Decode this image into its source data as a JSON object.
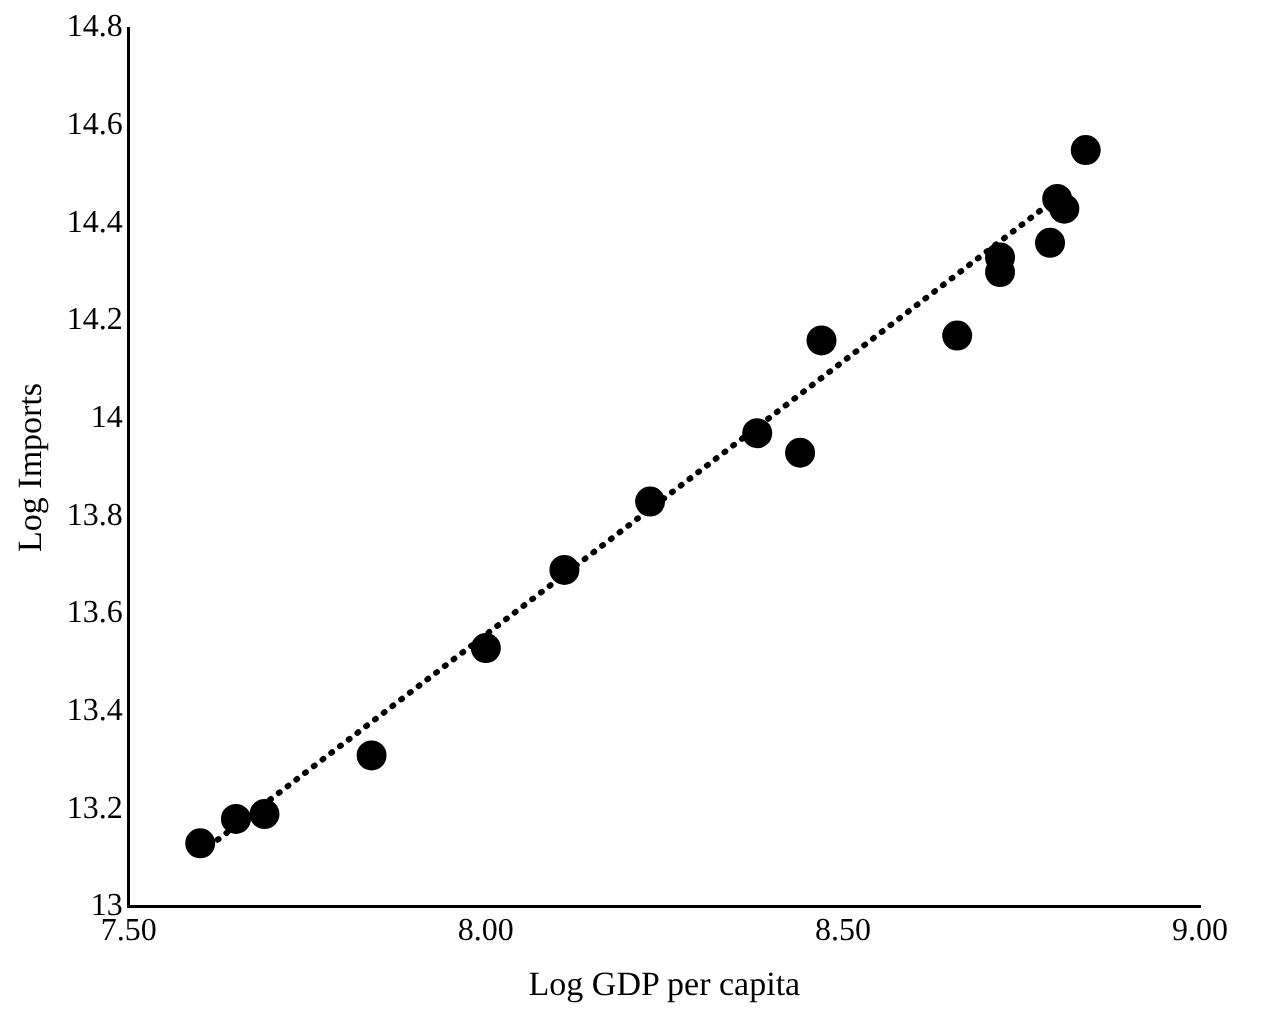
{
  "chart_data": {
    "type": "scatter",
    "xlabel": "Log GDP per capita",
    "ylabel": "Log Imports",
    "xlim": [
      7.5,
      9.0
    ],
    "xticks": [
      {
        "value": 7.5,
        "label": "7.50"
      },
      {
        "value": 8.0,
        "label": "8.00"
      },
      {
        "value": 8.5,
        "label": "8.50"
      },
      {
        "value": 9.0,
        "label": "9.00"
      }
    ],
    "ylim": [
      13,
      14.8
    ],
    "yticks": [
      13,
      13.2,
      13.4,
      13.6,
      13.8,
      14,
      14.2,
      14.4,
      14.6,
      14.8
    ],
    "grid": false,
    "legend": false,
    "marker": "circle",
    "series": [
      {
        "color": "#000000",
        "x": [
          7.6,
          7.65,
          7.69,
          7.84,
          8.0,
          8.11,
          8.23,
          8.38,
          8.44,
          8.47,
          8.66,
          8.72,
          8.72,
          8.79,
          8.8,
          8.81,
          8.84
        ],
        "values": [
          13.13,
          13.18,
          13.19,
          13.31,
          13.53,
          13.69,
          13.83,
          13.97,
          13.93,
          14.16,
          14.17,
          14.3,
          14.33,
          14.36,
          14.45,
          14.43,
          14.55
        ]
      },
      {
        "type": "line",
        "color": "#000000",
        "marker": "none",
        "line_style": "dotted",
        "x": [
          7.6,
          8.78
        ],
        "values": [
          13.11,
          14.43
        ]
      }
    ]
  }
}
